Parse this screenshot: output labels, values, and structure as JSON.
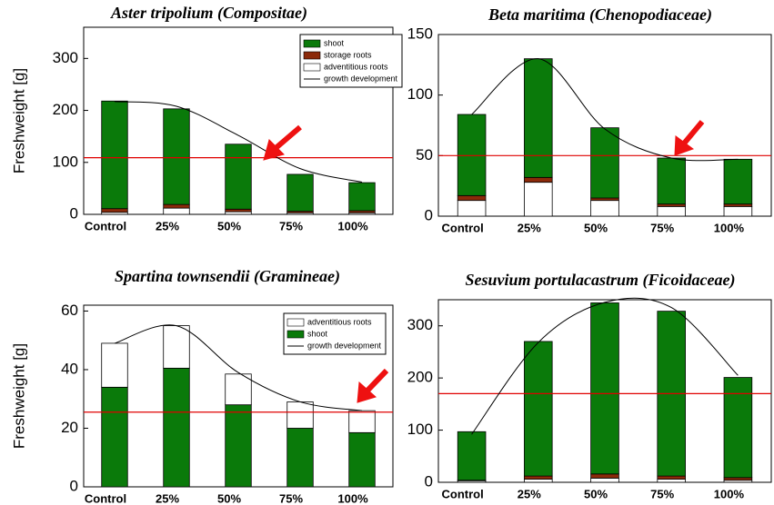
{
  "chart_data": [
    {
      "type": "bar",
      "stacked": true,
      "title": "Aster tripolium (Compositae)",
      "y_label": "Freshweight [g]",
      "categories": [
        "Control",
        "25%",
        "50%",
        "75%",
        "100%"
      ],
      "series": [
        {
          "name": "adventitious roots",
          "color": "#ffffff",
          "values": [
            4,
            12,
            5,
            3,
            3
          ]
        },
        {
          "name": "storage roots",
          "color": "#8b2a0a",
          "values": [
            7,
            7,
            5,
            3,
            4
          ]
        },
        {
          "name": "shoot",
          "color": "#0a7a0a",
          "values": [
            207,
            184,
            125,
            71,
            54
          ]
        }
      ],
      "curve": {
        "name": "growth development",
        "color": "#000000",
        "values": [
          217,
          208,
          152,
          88,
          62
        ]
      },
      "reference_line": {
        "value": 109,
        "color": "#e00000"
      },
      "ylim": [
        0,
        360
      ],
      "yticks": [
        0,
        100,
        200,
        300
      ],
      "legend": "upper right"
    },
    {
      "type": "bar",
      "stacked": true,
      "title": "Beta maritima (Chenopodiaceae)",
      "categories": [
        "Control",
        "25%",
        "50%",
        "75%",
        "100%"
      ],
      "series": [
        {
          "name": "adventitious roots",
          "color": "#ffffff",
          "values": [
            13,
            28,
            13,
            8,
            8
          ]
        },
        {
          "name": "storage roots",
          "color": "#8b2a0a",
          "values": [
            4,
            4,
            2,
            2,
            2
          ]
        },
        {
          "name": "shoot",
          "color": "#0a7a0a",
          "values": [
            67,
            98,
            58,
            38,
            37
          ]
        }
      ],
      "curve": {
        "name": "growth development",
        "color": "#000000",
        "values": [
          84,
          130,
          72,
          48,
          47
        ]
      },
      "reference_line": {
        "value": 50,
        "color": "#e00000"
      },
      "ylim": [
        0,
        150
      ],
      "yticks": [
        0,
        50,
        100,
        150
      ],
      "legend": null
    },
    {
      "type": "bar",
      "stacked": true,
      "title": "Spartina townsendii (Gramineae)",
      "y_label": "Freshweight [g]",
      "categories": [
        "Control",
        "25%",
        "50%",
        "75%",
        "100%"
      ],
      "series": [
        {
          "name": "shoot",
          "color": "#0a7a0a",
          "values": [
            34,
            40.5,
            28,
            20,
            18.5
          ]
        },
        {
          "name": "adventitious roots",
          "color": "#ffffff",
          "values": [
            15,
            14.5,
            10.5,
            9,
            7.5
          ]
        }
      ],
      "curve": {
        "name": "growth development",
        "color": "#000000",
        "values": [
          49,
          55,
          39,
          29,
          26
        ]
      },
      "reference_line": {
        "value": 25.5,
        "color": "#e00000"
      },
      "ylim": [
        0,
        62
      ],
      "yticks": [
        0,
        20,
        40,
        60
      ],
      "legend": "upper right"
    },
    {
      "type": "bar",
      "stacked": true,
      "title": "Sesuvium portulacastrum (Ficoidaceae)",
      "categories": [
        "Control",
        "25%",
        "50%",
        "75%",
        "100%"
      ],
      "series": [
        {
          "name": "adventitious roots",
          "color": "#ffffff",
          "values": [
            3,
            6,
            8,
            6,
            4
          ]
        },
        {
          "name": "storage roots",
          "color": "#8b2a0a",
          "values": [
            1,
            6,
            8,
            6,
            5
          ]
        },
        {
          "name": "shoot",
          "color": "#0a7a0a",
          "values": [
            93,
            258,
            328,
            316,
            192
          ]
        }
      ],
      "curve": {
        "name": "growth development",
        "color": "#000000",
        "values": [
          92,
          268,
          345,
          335,
          205
        ]
      },
      "reference_line": {
        "value": 170,
        "color": "#e00000"
      },
      "ylim": [
        0,
        350
      ],
      "yticks": [
        0,
        100,
        200,
        300
      ],
      "legend": null
    }
  ]
}
